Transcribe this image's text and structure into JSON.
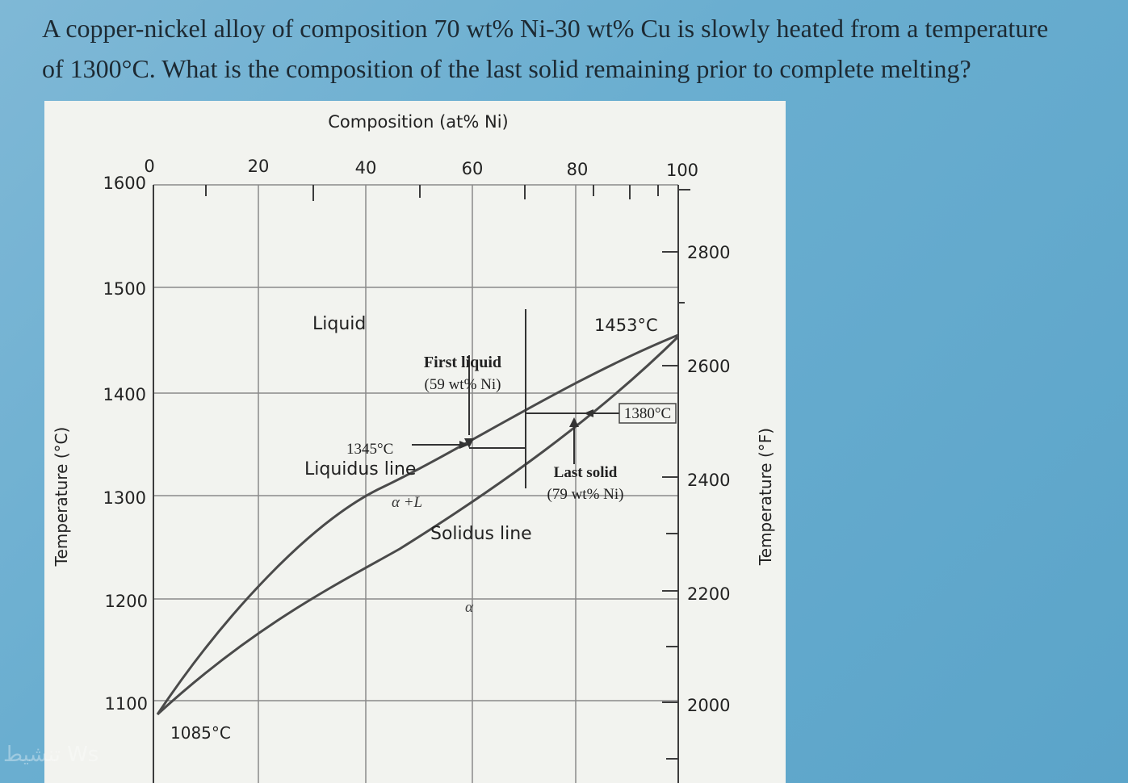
{
  "question": {
    "line1": "A copper-nickel alloy of composition 70 wt% Ni-30 wt% Cu is slowly heated from a temperature",
    "line2": "of 1300°C. What is the composition of the last solid remaining prior to complete melting?"
  },
  "diagram": {
    "top_axis_title": "Composition (at% Ni)",
    "top_ticks": [
      "0",
      "20",
      "40",
      "60",
      "80",
      "100"
    ],
    "left_axis_title": "Temperature (°C)",
    "left_ticks": [
      "1600",
      "1500",
      "1400",
      "1300",
      "1200",
      "1100"
    ],
    "right_axis_title": "Temperature (°F)",
    "right_ticks": [
      "2800",
      "2600",
      "2400",
      "2200",
      "2000"
    ],
    "labels": {
      "liquid": "Liquid",
      "t_1453": "1453°C",
      "first_liquid_1": "First liquid",
      "first_liquid_2": "(59 wt% Ni)",
      "t_1380": "1380°C",
      "t_1345": "1345°C",
      "liquidus": "Liquidus line",
      "alpha_l": "α +L",
      "last_solid_1": "Last solid",
      "last_solid_2": "(79 wt% Ni)",
      "solidus": "Solidus line",
      "alpha": "α",
      "t_1085": "1085°C"
    },
    "colors": {
      "line": "#4a4a4a",
      "grid": "#8a8a8a",
      "background": "#f2f3ef"
    }
  },
  "watermark": "تنشيط Ws"
}
